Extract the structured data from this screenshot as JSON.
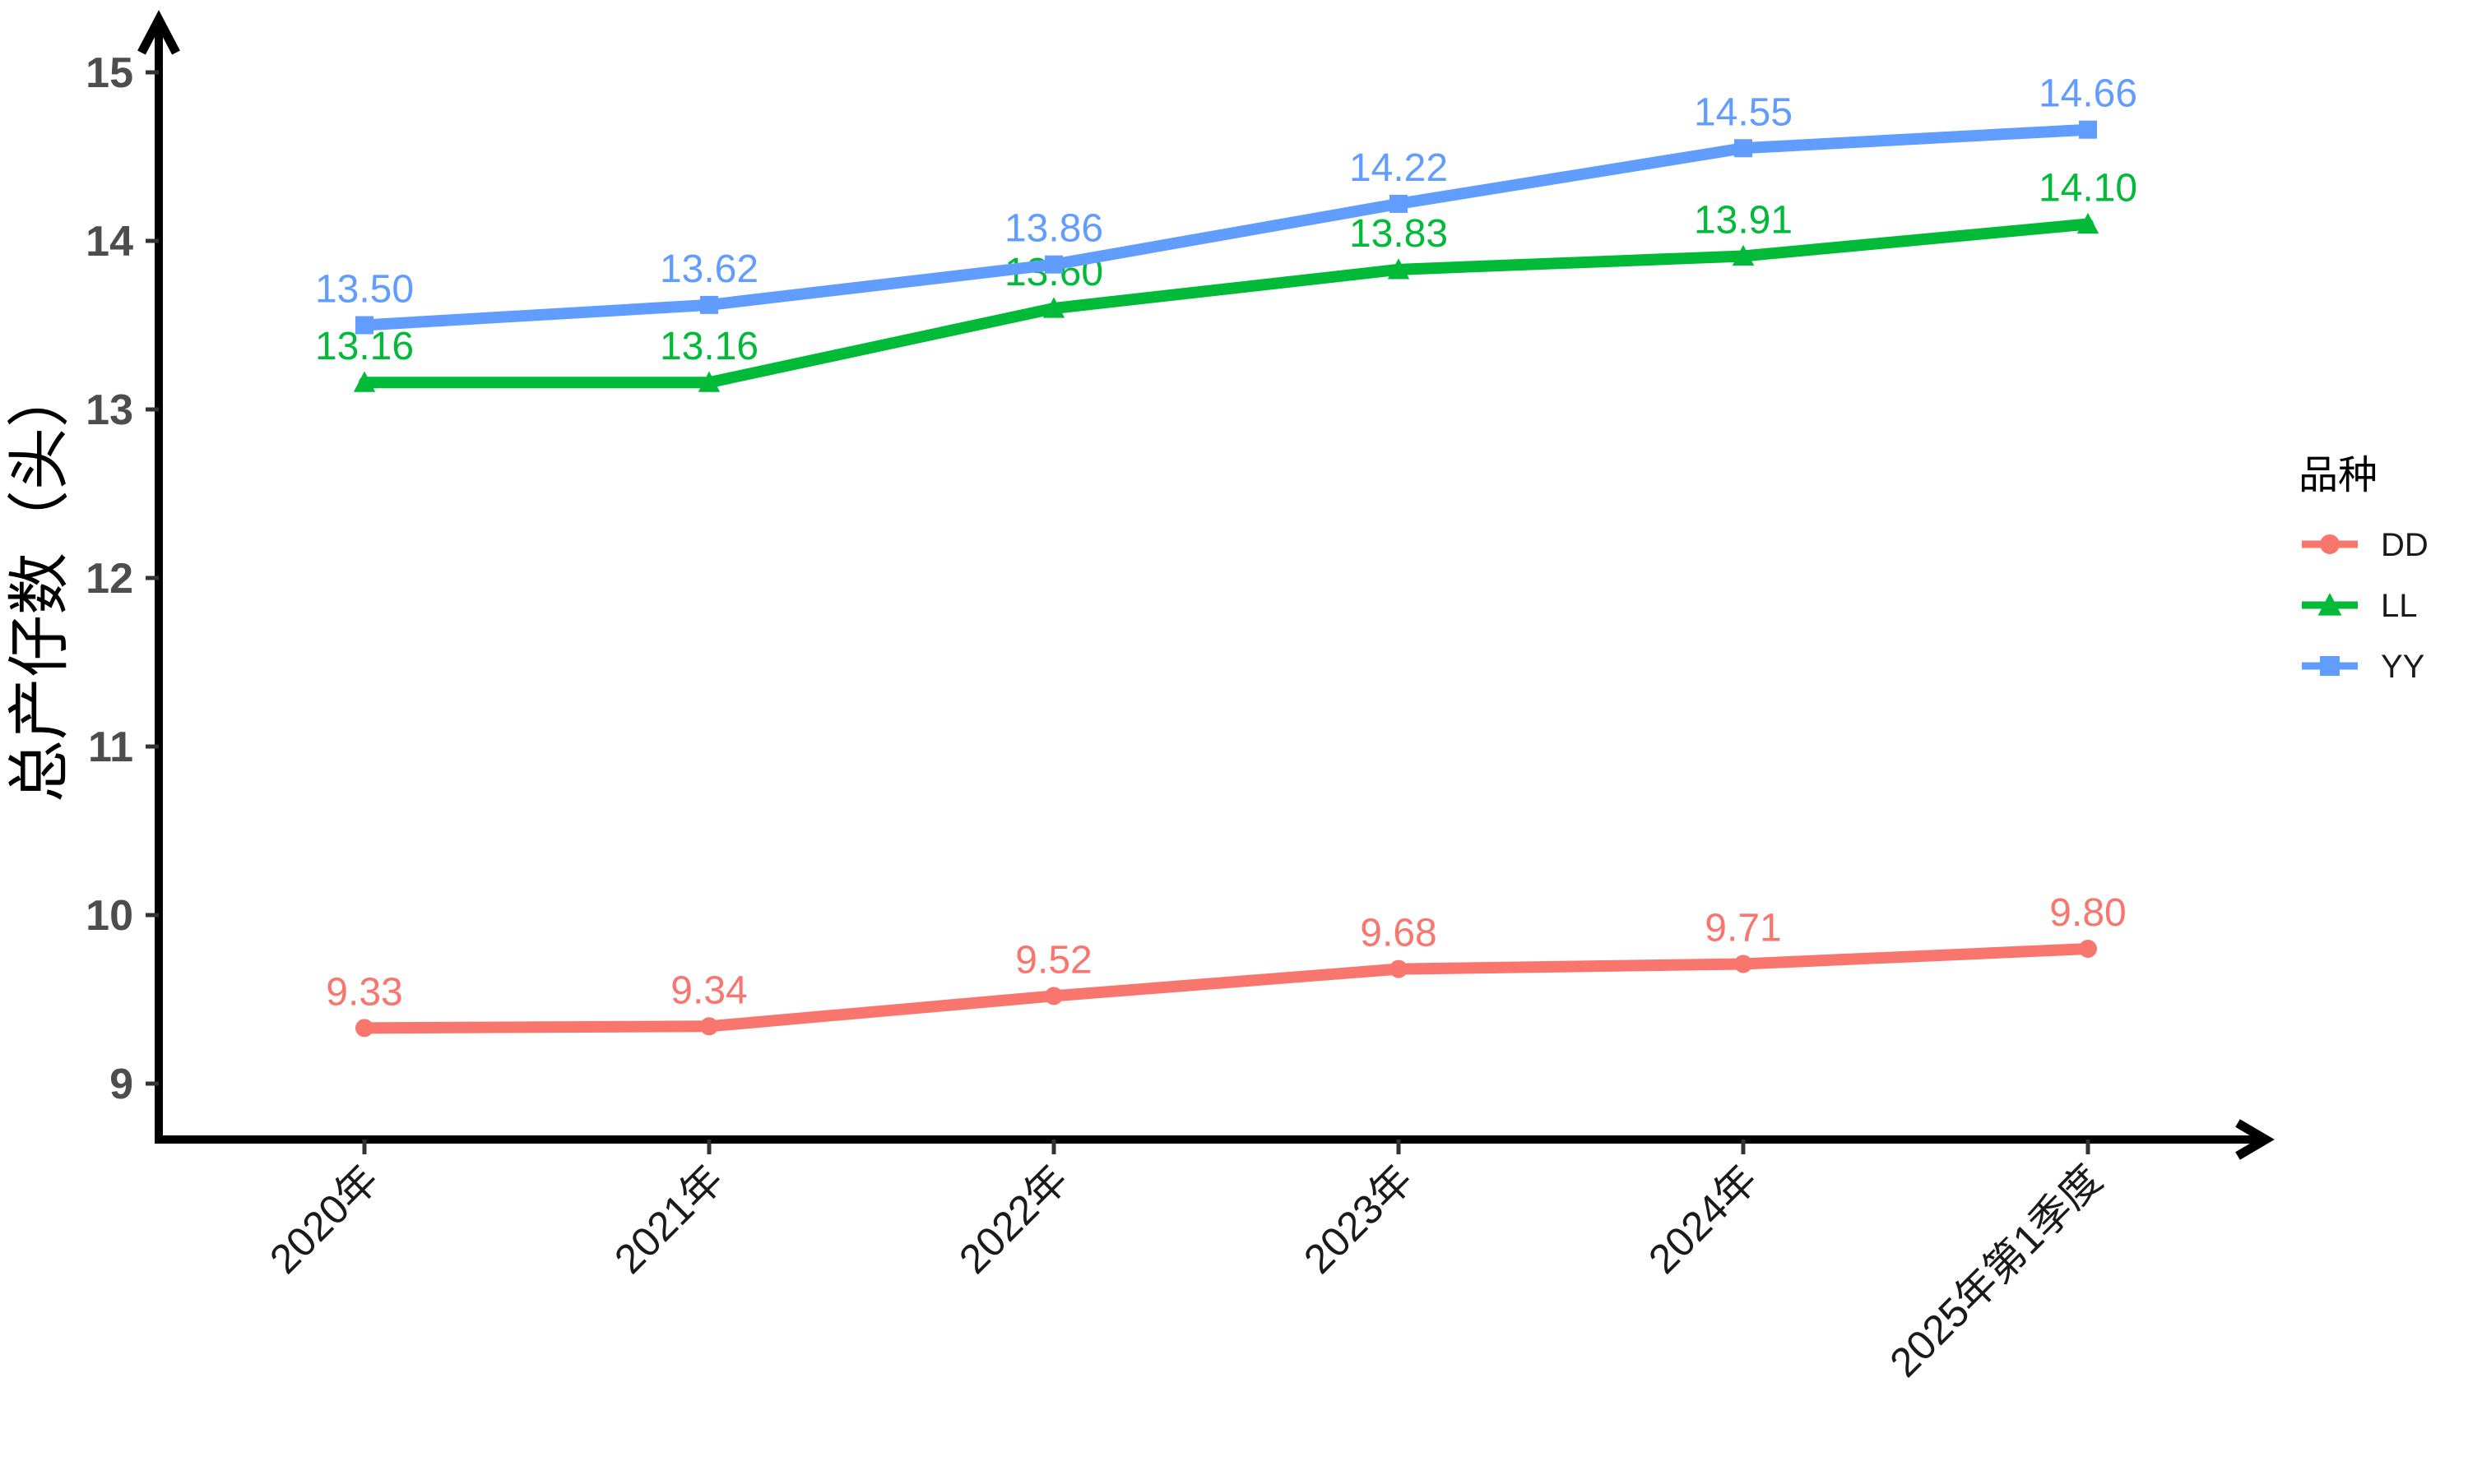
{
  "figure": {
    "background": "#FFFFFF",
    "axis_color": "#000000",
    "tick_color": "#333333",
    "tick_label_color": "#4D4D4D",
    "x_label_color": "#1A1A1A",
    "legend_label_color": "#1A1A1A"
  },
  "chart_data": {
    "type": "line",
    "categories": [
      "2020年",
      "2021年",
      "2022年",
      "2023年",
      "2024年",
      "2025年第1季度"
    ],
    "series": [
      {
        "name": "DD",
        "color": "#F8766D",
        "marker": "circle",
        "values": [
          9.33,
          9.34,
          9.52,
          9.68,
          9.71,
          9.8
        ]
      },
      {
        "name": "LL",
        "color": "#00BA38",
        "marker": "triangle",
        "values": [
          13.16,
          13.16,
          13.6,
          13.83,
          13.91,
          14.1
        ]
      },
      {
        "name": "YY",
        "color": "#619CFF",
        "marker": "square",
        "values": [
          13.5,
          13.62,
          13.86,
          14.22,
          14.55,
          14.66
        ]
      }
    ],
    "title": "",
    "xlabel": "",
    "ylabel": "总产仔数（头）",
    "y_ticks": [
      9,
      10,
      11,
      12,
      13,
      14,
      15
    ],
    "ylim": [
      8.6,
      15.4
    ],
    "grid": false,
    "data_labels": true,
    "label_decimals": 2,
    "legend_title": "品种",
    "legend_position": "right"
  }
}
